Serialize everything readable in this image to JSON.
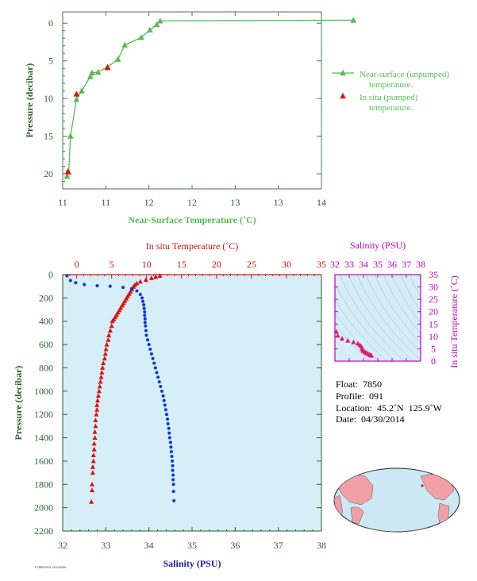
{
  "chart_data": [
    {
      "type": "line",
      "xlabel": "Near-Surface Temperature (˚C)",
      "ylabel": "Pressure (decibar)",
      "xlim": [
        11,
        14
      ],
      "ylim": [
        22,
        -1.5
      ],
      "xticks": [
        11,
        11.5,
        12,
        12.5,
        13,
        13.5,
        14
      ],
      "xtick_labels": [
        "11",
        "11",
        "12",
        "12",
        "13",
        "13",
        "14"
      ],
      "yticks": [
        0,
        5,
        10,
        15,
        20
      ],
      "ytick_labels": [
        "0",
        "5",
        "10",
        "15",
        "20"
      ],
      "grid": false,
      "legend_position": "right",
      "colors": {
        "unpumped": "#55bb55",
        "pumped": "#dd1111",
        "axis_text": "#2e5e2e"
      },
      "series": [
        {
          "name": "Near-surface (unpumped) temperature.",
          "marker": "triangle",
          "x": [
            14.37,
            12.13,
            12.09,
            12.01,
            11.91,
            11.72,
            11.64,
            11.52,
            11.41,
            11.34,
            11.32,
            11.22,
            11.16,
            11.09,
            11.07,
            11.05
          ],
          "y": [
            -0.4,
            -0.3,
            0.2,
            0.9,
            1.9,
            2.9,
            4.8,
            5.8,
            6.5,
            6.6,
            7.1,
            9.0,
            10.1,
            15.0,
            19.8,
            20.3
          ]
        },
        {
          "name": "In situ (pumped) temperature.",
          "marker": "triangle",
          "x": [
            11.52,
            11.16,
            11.06
          ],
          "y": [
            5.9,
            9.4,
            19.7
          ]
        }
      ]
    },
    {
      "type": "line",
      "x_top_label": "In situ Temperature (˚C)",
      "x_bottom_label": "Salinity (PSU)",
      "ylabel": "Pressure (decibar)",
      "temp_xlim": [
        -2,
        35
      ],
      "sal_xlim": [
        32,
        38
      ],
      "ylim": [
        2200,
        0
      ],
      "temp_ticks": [
        "0",
        "5",
        "10",
        "15",
        "20",
        "25",
        "30",
        "35"
      ],
      "sal_ticks": [
        "32",
        "33",
        "34",
        "35",
        "36",
        "37",
        "38"
      ],
      "yticks": [
        "0",
        "200",
        "400",
        "600",
        "800",
        "1000",
        "1200",
        "1400",
        "1600",
        "1800",
        "2000",
        "2200"
      ],
      "colors": {
        "temperature": "#dd1111",
        "salinity": "#1133dd",
        "background": "#d5eef8",
        "axis_text": "#2e5e2e",
        "salinity_text": "#1a1aaa"
      },
      "series": [
        {
          "name": "In situ Temperature",
          "marker": "triangle",
          "axis": "top",
          "x": [
            11.9,
            11.3,
            10.7,
            9.9,
            9.1,
            8.6,
            8.3,
            8.1,
            7.9,
            7.7,
            7.5,
            7.3,
            7.1,
            6.9,
            6.7,
            6.5,
            6.3,
            6.1,
            5.9,
            5.7,
            5.5,
            5.3,
            5.1,
            5.0,
            4.8,
            4.6,
            4.5,
            4.3,
            4.2,
            4.1,
            4.0,
            3.8,
            3.7,
            3.6,
            3.5,
            3.4,
            3.3,
            3.2,
            3.1,
            3.0,
            2.9,
            2.9,
            2.8,
            2.7,
            2.7,
            2.6,
            2.6,
            2.5,
            2.5,
            2.4,
            2.4,
            2.3,
            2.3,
            2.2,
            2.2,
            2.1
          ],
          "y": [
            10,
            20,
            30,
            45,
            60,
            75,
            90,
            105,
            125,
            145,
            165,
            185,
            205,
            225,
            245,
            265,
            285,
            305,
            325,
            345,
            365,
            385,
            400,
            440,
            480,
            520,
            560,
            600,
            640,
            680,
            720,
            760,
            800,
            840,
            880,
            920,
            960,
            1000,
            1040,
            1080,
            1120,
            1160,
            1200,
            1250,
            1300,
            1350,
            1400,
            1450,
            1500,
            1550,
            1600,
            1650,
            1700,
            1800,
            1850,
            1950
          ]
        },
        {
          "name": "Salinity",
          "marker": "dot",
          "axis": "bottom",
          "x": [
            32.1,
            32.18,
            32.3,
            32.5,
            32.8,
            33.1,
            33.4,
            33.6,
            33.72,
            33.8,
            33.84,
            33.86,
            33.88,
            33.89,
            33.9,
            33.9,
            33.91,
            33.91,
            33.92,
            33.93,
            33.94,
            33.97,
            34.0,
            34.03,
            34.06,
            34.09,
            34.12,
            34.15,
            34.18,
            34.21,
            34.24,
            34.27,
            34.3,
            34.33,
            34.35,
            34.37,
            34.39,
            34.41,
            34.43,
            34.44,
            34.46,
            34.47,
            34.48,
            34.5,
            34.51,
            34.52,
            34.53,
            34.54,
            34.55,
            34.55,
            34.56,
            34.56,
            34.57,
            34.57,
            34.58
          ],
          "y": [
            10,
            50,
            70,
            85,
            95,
            100,
            110,
            120,
            140,
            170,
            200,
            230,
            260,
            290,
            320,
            350,
            380,
            410,
            440,
            480,
            520,
            560,
            600,
            640,
            680,
            720,
            760,
            800,
            840,
            880,
            920,
            960,
            1000,
            1040,
            1080,
            1120,
            1160,
            1200,
            1240,
            1280,
            1320,
            1360,
            1400,
            1440,
            1480,
            1520,
            1560,
            1600,
            1640,
            1680,
            1720,
            1760,
            1800,
            1860,
            1940
          ]
        }
      ]
    },
    {
      "type": "scatter",
      "xlabel": "Salinity (PSU)",
      "ylabel": "In situ Temperature (˚C)",
      "xlim": [
        32,
        38
      ],
      "ylim": [
        0,
        35
      ],
      "xticks": [
        "32",
        "33",
        "34",
        "35",
        "36",
        "37",
        "38"
      ],
      "yticks": [
        "0",
        "5",
        "10",
        "15",
        "20",
        "25",
        "30",
        "35"
      ],
      "colors": {
        "points": "#e0177a",
        "axis": "#c000c0",
        "background": "#d5eef8",
        "isopycnal": "#9ab0c4"
      },
      "points": [
        [
          32.1,
          11.9
        ],
        [
          32.2,
          10.3
        ],
        [
          32.5,
          9.1
        ],
        [
          32.9,
          8.3
        ],
        [
          33.3,
          7.7
        ],
        [
          33.6,
          7.1
        ],
        [
          33.75,
          6.5
        ],
        [
          33.85,
          5.9
        ],
        [
          33.9,
          5.0
        ],
        [
          33.95,
          4.5
        ],
        [
          34.0,
          4.1
        ],
        [
          34.1,
          3.7
        ],
        [
          34.2,
          3.3
        ],
        [
          34.3,
          3.0
        ],
        [
          34.4,
          2.7
        ],
        [
          34.5,
          2.4
        ],
        [
          34.56,
          2.2
        ]
      ]
    }
  ],
  "info": {
    "float": "Float:  7850",
    "profile": "Profile:  091",
    "location": "Location:  45.2˚N  125.9˚W",
    "date": "Date:  04/30/2014"
  },
  "legend": {
    "unpumped_line1": "Near-surface (unpumped)",
    "unpumped_line2": "temperature.",
    "pumped_line1": "In situ (pumped)",
    "pumped_line2": "temperature."
  },
  "footer": "F7850P091 20140430",
  "map": {
    "colors": {
      "ocean": "#cde8f5",
      "land": "#f2a0a8",
      "marker": "#d11"
    }
  }
}
